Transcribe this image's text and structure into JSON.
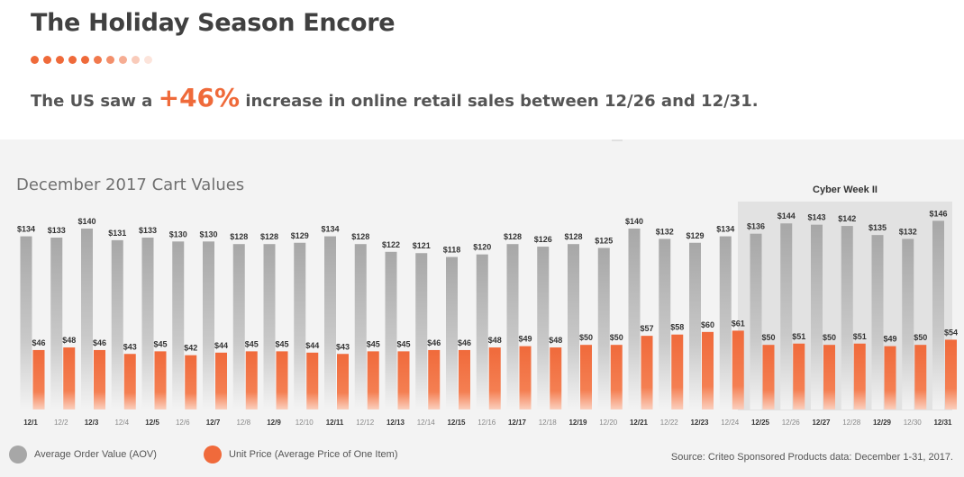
{
  "header": {
    "title": "The Holiday Season Encore",
    "headline_pre": "The US saw a",
    "headline_highlight": "+46%",
    "headline_post": "increase in online retail sales between 12/26 and 12/31."
  },
  "colors": {
    "accent": "#ef6a3a",
    "aov_top": "#a7a7a7",
    "unit_top": "#f06a3b"
  },
  "footer": {
    "source": "Source: Criteo Sponsored Products data: December 1-31, 2017."
  },
  "chart_data": {
    "type": "bar",
    "title": "December 2017 Cart Values",
    "highlight_region": {
      "label": "Cyber Week II",
      "from": "12/25",
      "to": "12/31"
    },
    "categories": [
      "12/1",
      "12/2",
      "12/3",
      "12/4",
      "12/5",
      "12/6",
      "12/7",
      "12/8",
      "12/9",
      "12/10",
      "12/11",
      "12/12",
      "12/13",
      "12/14",
      "12/15",
      "12/16",
      "12/17",
      "12/18",
      "12/19",
      "12/20",
      "12/21",
      "12/22",
      "12/23",
      "12/24",
      "12/25",
      "12/26",
      "12/27",
      "12/28",
      "12/29",
      "12/30",
      "12/31"
    ],
    "series": [
      {
        "name": "Average Order Value (AOV)",
        "color": "#a7a7a7",
        "values": [
          134,
          133,
          140,
          131,
          133,
          130,
          130,
          128,
          128,
          129,
          134,
          128,
          122,
          121,
          118,
          120,
          128,
          126,
          128,
          125,
          140,
          132,
          129,
          134,
          136,
          144,
          143,
          142,
          135,
          132,
          146
        ],
        "labels": [
          "$134",
          "$133",
          "$140",
          "$131",
          "$133",
          "$130",
          "$130",
          "$128",
          "$128",
          "$129",
          "$134",
          "$128",
          "$122",
          "$121",
          "$118",
          "$120",
          "$128",
          "$126",
          "$128",
          "$125",
          "$140",
          "$132",
          "$129",
          "$134",
          "$136",
          "$144",
          "$143",
          "$142",
          "$135",
          "$132",
          "$146"
        ]
      },
      {
        "name": "Unit Price (Average Price of One Item)",
        "color": "#f06a3b",
        "values": [
          46,
          48,
          46,
          43,
          45,
          42,
          44,
          45,
          45,
          44,
          43,
          45,
          45,
          46,
          46,
          48,
          49,
          48,
          50,
          50,
          57,
          58,
          60,
          61,
          50,
          51,
          50,
          51,
          49,
          50,
          54
        ],
        "labels": [
          "$46",
          "$48",
          "$46",
          "$43",
          "$45",
          "$42",
          "$44",
          "$45",
          "$45",
          "$44",
          "$43",
          "$45",
          "$45",
          "$46",
          "$46",
          "$48",
          "$49",
          "$48",
          "$50",
          "$50",
          "$57",
          "$58",
          "$60",
          "$61",
          "$50",
          "$51",
          "$50",
          "$51",
          "$49",
          "$50",
          "$54"
        ]
      }
    ],
    "grid": false,
    "legend_position": "bottom-left"
  }
}
